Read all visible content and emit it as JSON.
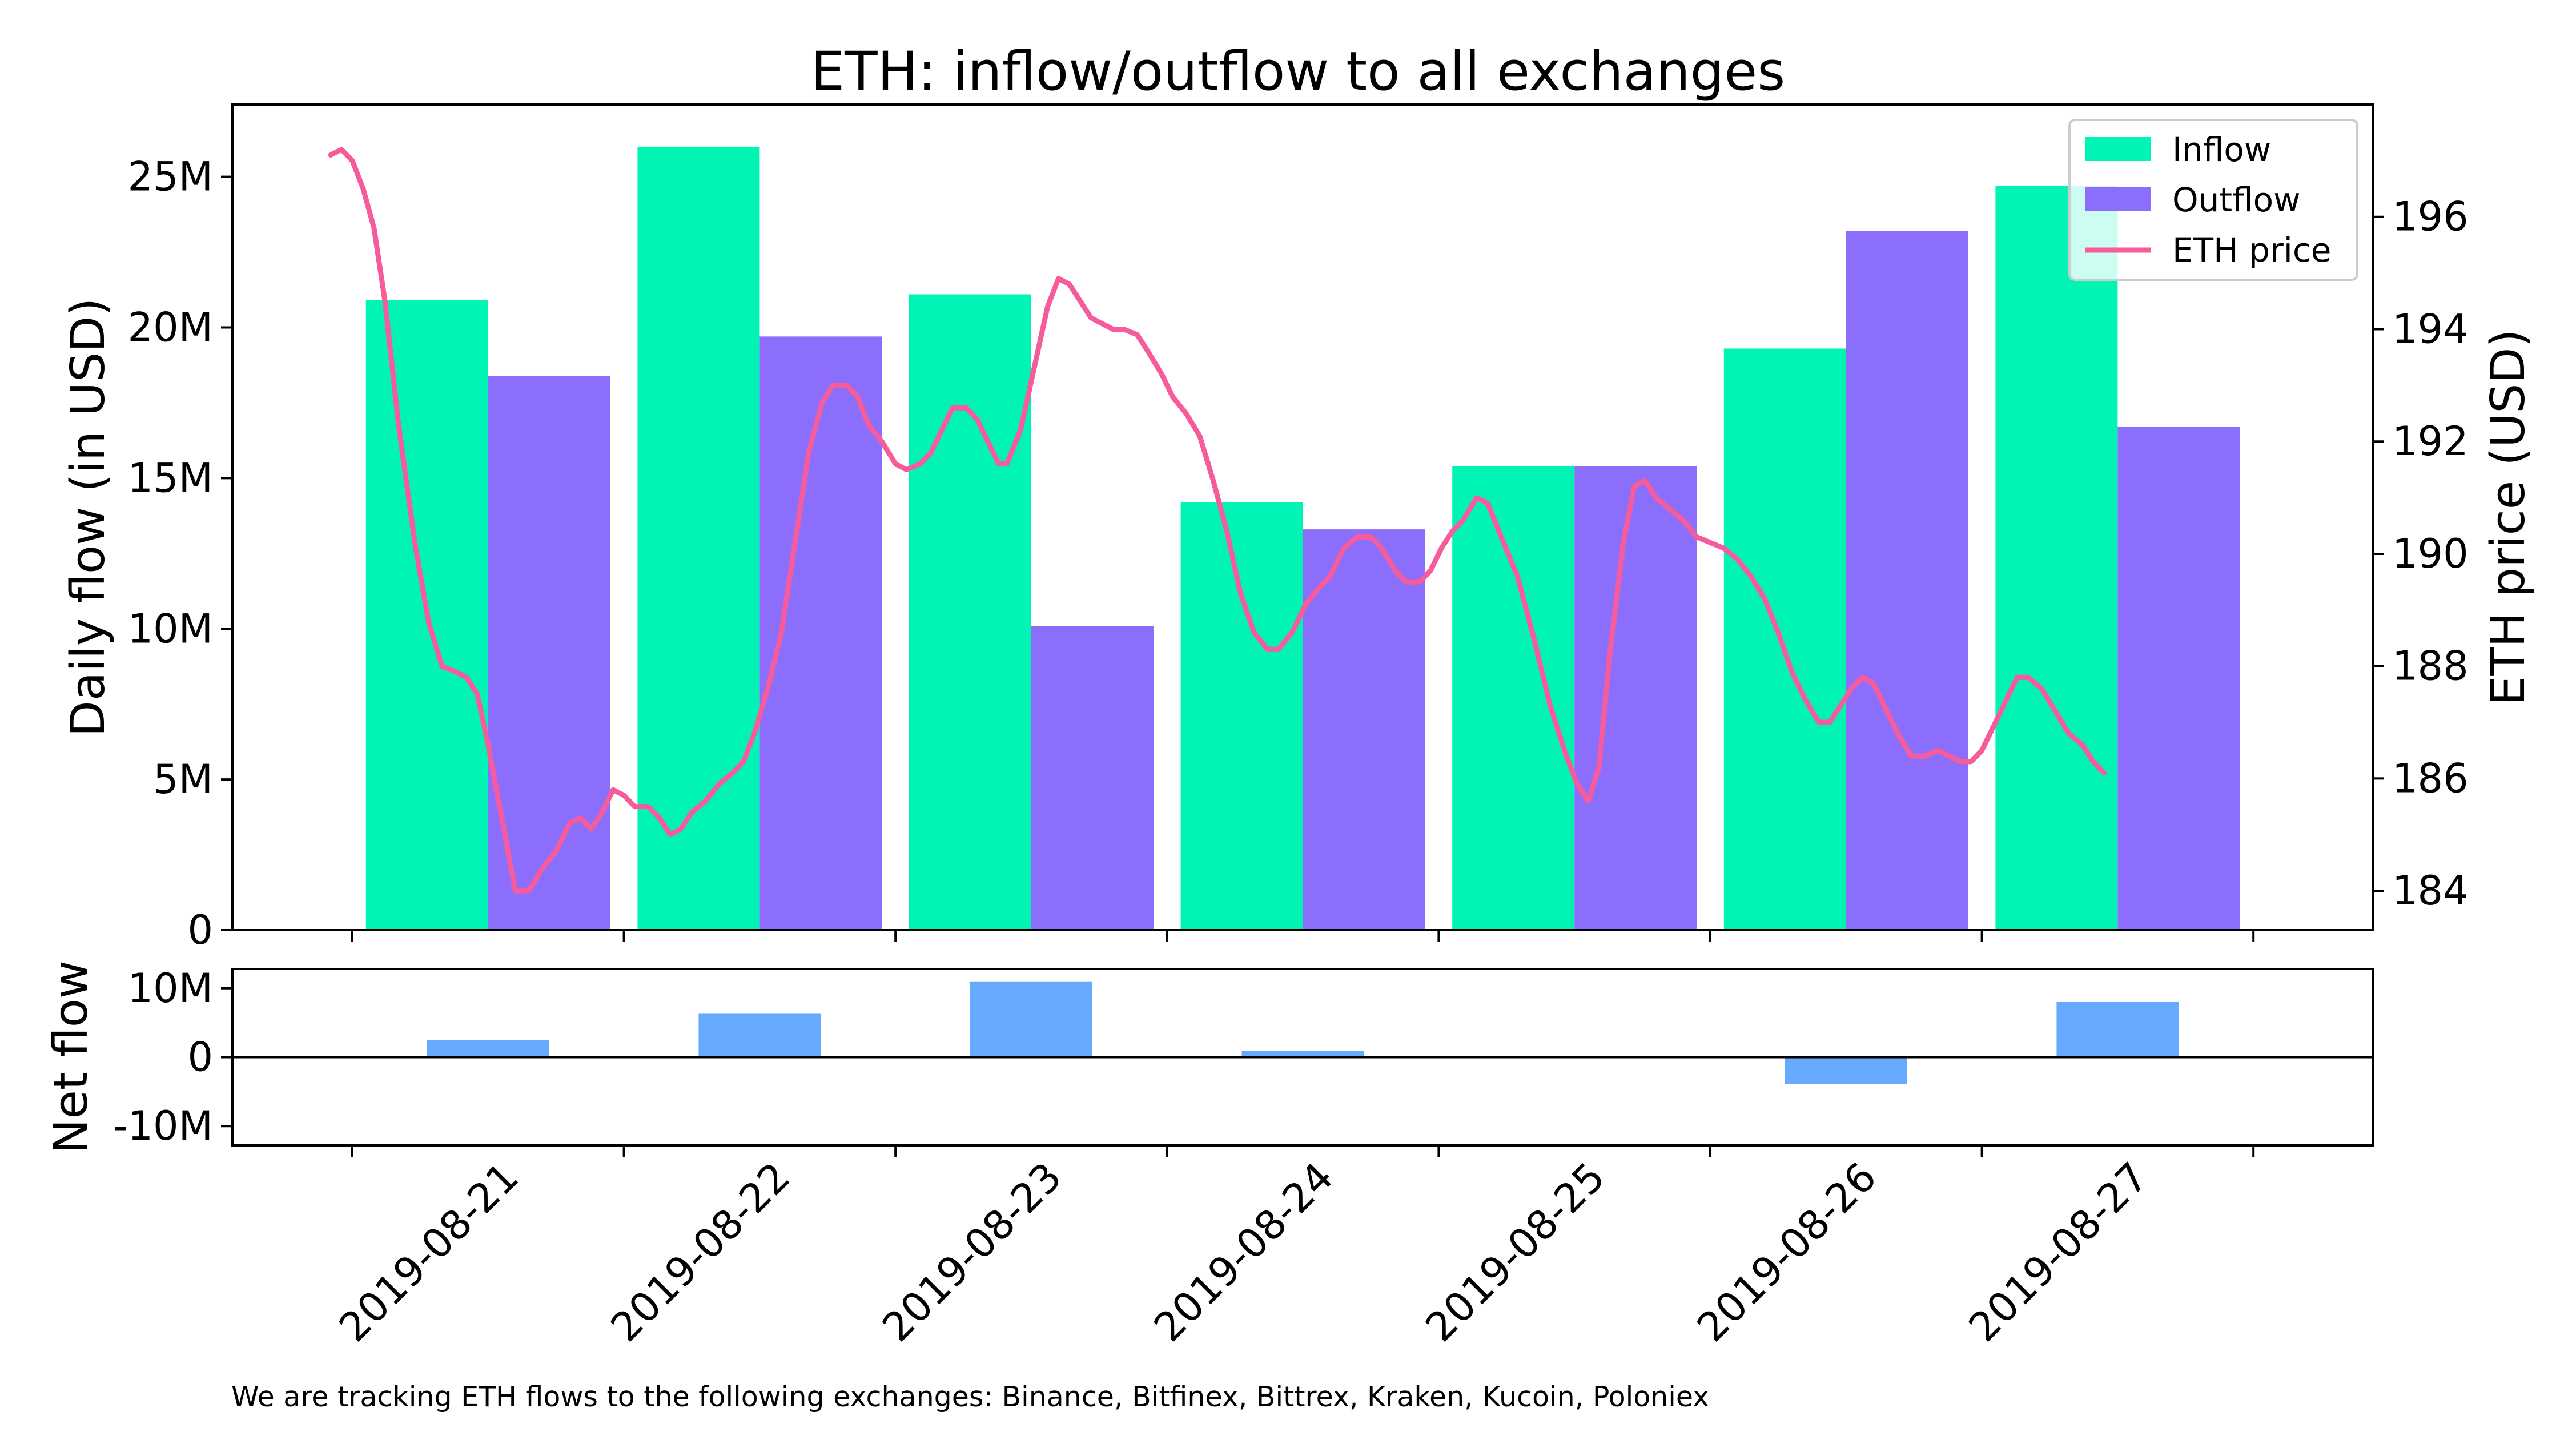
{
  "chart_data": {
    "title": "ETH: inflow/outflow to all exchanges",
    "footnote": "We are tracking ETH flows to the following exchanges: Binance, Bitfinex, Bittrex, Kraken, Kucoin, Poloniex",
    "type": "bar",
    "categories": [
      "2019-08-21",
      "2019-08-22",
      "2019-08-23",
      "2019-08-24",
      "2019-08-25",
      "2019-08-26",
      "2019-08-27"
    ],
    "upper": {
      "type": "bar",
      "ylabel": "Daily flow (in USD)",
      "ylim": [
        0,
        27400000
      ],
      "yticks": [
        {
          "value": 0,
          "label": "0"
        },
        {
          "value": 5000000,
          "label": "5M"
        },
        {
          "value": 10000000,
          "label": "10M"
        },
        {
          "value": 15000000,
          "label": "15M"
        },
        {
          "value": 20000000,
          "label": "20M"
        },
        {
          "value": 25000000,
          "label": "25M"
        }
      ],
      "series": [
        {
          "name": "Inflow",
          "color": "#00f5b5",
          "values": [
            20900000,
            26000000,
            21100000,
            14200000,
            15400000,
            19300000,
            24700000
          ]
        },
        {
          "name": "Outflow",
          "color": "#8b6ffc",
          "values": [
            18400000,
            19700000,
            10100000,
            13300000,
            15400000,
            23200000,
            16700000
          ]
        }
      ],
      "secondary_axis": {
        "type": "line",
        "ylabel": "ETH price (USD)",
        "ylim": [
          183.3,
          198.0
        ],
        "yticks": [
          {
            "value": 184,
            "label": "184"
          },
          {
            "value": 186,
            "label": "186"
          },
          {
            "value": 188,
            "label": "188"
          },
          {
            "value": 190,
            "label": "190"
          },
          {
            "value": 192,
            "label": "192"
          },
          {
            "value": 194,
            "label": "194"
          },
          {
            "value": 196,
            "label": "196"
          }
        ],
        "series": [
          {
            "name": "ETH price",
            "color": "#f65b9b",
            "points": [
              [
                -0.08,
                197.1
              ],
              [
                -0.04,
                197.2
              ],
              [
                0.0,
                197.0
              ],
              [
                0.04,
                196.5
              ],
              [
                0.08,
                195.8
              ],
              [
                0.12,
                194.5
              ],
              [
                0.17,
                192.3
              ],
              [
                0.23,
                190.2
              ],
              [
                0.28,
                188.8
              ],
              [
                0.33,
                188.0
              ],
              [
                0.38,
                187.9
              ],
              [
                0.42,
                187.8
              ],
              [
                0.46,
                187.5
              ],
              [
                0.5,
                186.6
              ],
              [
                0.55,
                185.3
              ],
              [
                0.6,
                184.0
              ],
              [
                0.65,
                184.0
              ],
              [
                0.7,
                184.4
              ],
              [
                0.75,
                184.7
              ],
              [
                0.8,
                185.2
              ],
              [
                0.84,
                185.3
              ],
              [
                0.88,
                185.1
              ],
              [
                0.92,
                185.4
              ],
              [
                0.96,
                185.8
              ],
              [
                1.0,
                185.7
              ],
              [
                1.04,
                185.5
              ],
              [
                1.09,
                185.5
              ],
              [
                1.13,
                185.3
              ],
              [
                1.17,
                185.0
              ],
              [
                1.21,
                185.1
              ],
              [
                1.25,
                185.4
              ],
              [
                1.3,
                185.6
              ],
              [
                1.35,
                185.9
              ],
              [
                1.4,
                186.1
              ],
              [
                1.44,
                186.3
              ],
              [
                1.48,
                186.8
              ],
              [
                1.53,
                187.6
              ],
              [
                1.58,
                188.6
              ],
              [
                1.63,
                190.2
              ],
              [
                1.68,
                191.8
              ],
              [
                1.73,
                192.7
              ],
              [
                1.77,
                193.0
              ],
              [
                1.82,
                193.0
              ],
              [
                1.86,
                192.8
              ],
              [
                1.9,
                192.3
              ],
              [
                1.95,
                192.0
              ],
              [
                2.0,
                191.6
              ],
              [
                2.04,
                191.5
              ],
              [
                2.09,
                191.6
              ],
              [
                2.13,
                191.8
              ],
              [
                2.17,
                192.2
              ],
              [
                2.21,
                192.6
              ],
              [
                2.26,
                192.6
              ],
              [
                2.3,
                192.4
              ],
              [
                2.35,
                191.9
              ],
              [
                2.38,
                191.6
              ],
              [
                2.41,
                191.6
              ],
              [
                2.46,
                192.2
              ],
              [
                2.51,
                193.3
              ],
              [
                2.56,
                194.4
              ],
              [
                2.6,
                194.9
              ],
              [
                2.64,
                194.8
              ],
              [
                2.68,
                194.5
              ],
              [
                2.72,
                194.2
              ],
              [
                2.76,
                194.1
              ],
              [
                2.8,
                194.0
              ],
              [
                2.84,
                194.0
              ],
              [
                2.89,
                193.9
              ],
              [
                2.93,
                193.6
              ],
              [
                2.98,
                193.2
              ],
              [
                3.02,
                192.8
              ],
              [
                3.07,
                192.5
              ],
              [
                3.12,
                192.1
              ],
              [
                3.17,
                191.3
              ],
              [
                3.22,
                190.4
              ],
              [
                3.27,
                189.3
              ],
              [
                3.32,
                188.6
              ],
              [
                3.37,
                188.3
              ],
              [
                3.41,
                188.3
              ],
              [
                3.46,
                188.6
              ],
              [
                3.51,
                189.1
              ],
              [
                3.56,
                189.4
              ],
              [
                3.6,
                189.6
              ],
              [
                3.65,
                190.1
              ],
              [
                3.7,
                190.3
              ],
              [
                3.75,
                190.3
              ],
              [
                3.79,
                190.1
              ],
              [
                3.84,
                189.7
              ],
              [
                3.88,
                189.5
              ],
              [
                3.93,
                189.5
              ],
              [
                3.97,
                189.7
              ],
              [
                4.01,
                190.1
              ],
              [
                4.05,
                190.4
              ],
              [
                4.09,
                190.6
              ],
              [
                4.14,
                191.0
              ],
              [
                4.18,
                190.9
              ],
              [
                4.23,
                190.3
              ],
              [
                4.29,
                189.6
              ],
              [
                4.35,
                188.5
              ],
              [
                4.41,
                187.3
              ],
              [
                4.47,
                186.4
              ],
              [
                4.51,
                185.9
              ],
              [
                4.55,
                185.6
              ],
              [
                4.59,
                186.2
              ],
              [
                4.63,
                188.2
              ],
              [
                4.68,
                190.2
              ],
              [
                4.72,
                191.2
              ],
              [
                4.76,
                191.3
              ],
              [
                4.8,
                191.0
              ],
              [
                4.85,
                190.8
              ],
              [
                4.9,
                190.6
              ],
              [
                4.95,
                190.3
              ],
              [
                5.0,
                190.2
              ],
              [
                5.05,
                190.1
              ],
              [
                5.1,
                189.9
              ],
              [
                5.15,
                189.6
              ],
              [
                5.2,
                189.2
              ],
              [
                5.25,
                188.6
              ],
              [
                5.3,
                187.9
              ],
              [
                5.35,
                187.4
              ],
              [
                5.4,
                187.0
              ],
              [
                5.44,
                187.0
              ],
              [
                5.48,
                187.3
              ],
              [
                5.52,
                187.6
              ],
              [
                5.56,
                187.8
              ],
              [
                5.6,
                187.7
              ],
              [
                5.64,
                187.3
              ],
              [
                5.69,
                186.8
              ],
              [
                5.74,
                186.4
              ],
              [
                5.79,
                186.4
              ],
              [
                5.84,
                186.5
              ],
              [
                5.88,
                186.4
              ],
              [
                5.92,
                186.3
              ],
              [
                5.96,
                186.3
              ],
              [
                6.0,
                186.5
              ],
              [
                6.04,
                186.9
              ],
              [
                6.09,
                187.4
              ],
              [
                6.13,
                187.8
              ],
              [
                6.17,
                187.8
              ],
              [
                6.22,
                187.6
              ],
              [
                6.27,
                187.2
              ],
              [
                6.32,
                186.8
              ],
              [
                6.37,
                186.6
              ],
              [
                6.41,
                186.3
              ],
              [
                6.45,
                186.1
              ]
            ]
          }
        ]
      },
      "legend": {
        "placement": "top-right",
        "entries": [
          "Inflow",
          "Outflow",
          "ETH price"
        ]
      }
    },
    "lower": {
      "type": "bar",
      "ylabel": "Net flow",
      "ylim": [
        -12800000,
        12800000
      ],
      "yticks": [
        {
          "value": 10000000,
          "label": "10M"
        },
        {
          "value": 0,
          "label": "0"
        },
        {
          "value": -10000000,
          "label": "-10M"
        }
      ],
      "series": [
        {
          "name": "Net flow",
          "color": "#66aaff",
          "values": [
            2500000,
            6300000,
            11000000,
            900000,
            0,
            -3900000,
            8000000
          ]
        }
      ]
    },
    "x_tick_labels": [
      "2019-08-21",
      "2019-08-22",
      "2019-08-23",
      "2019-08-24",
      "2019-08-25",
      "2019-08-26",
      "2019-08-27"
    ]
  }
}
